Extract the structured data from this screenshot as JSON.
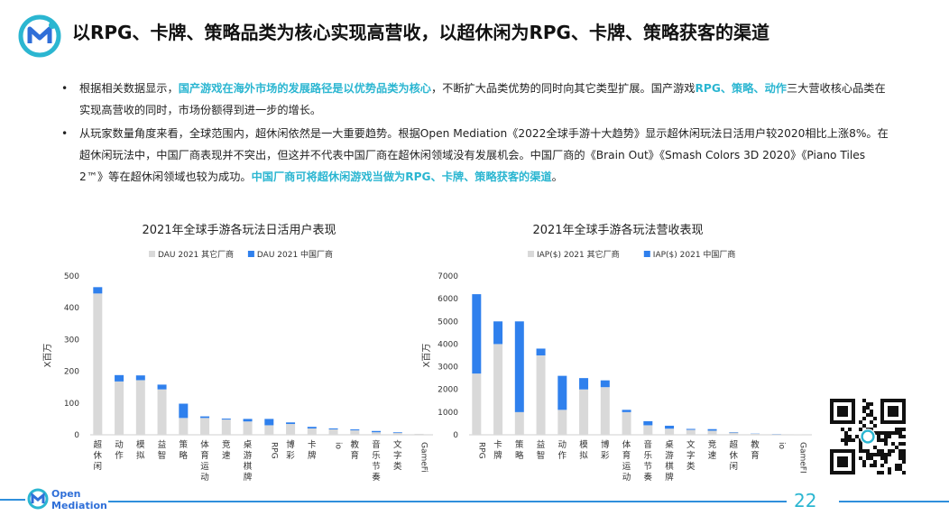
{
  "title": "以RPG、卡牌、策略品类为核心实现高营收，以超休闲为RPG、卡牌、策略获客的渠道",
  "bullets": [
    [
      {
        "t": "根据相关数据显示，",
        "hl": false
      },
      {
        "t": "国产游戏在海外市场的发展路径是以优势品类为核心",
        "hl": true
      },
      {
        "t": "，不断扩大品类优势的同时向其它类型扩展。国产游戏",
        "hl": false
      },
      {
        "t": "RPG、策略、动作",
        "hl": true
      },
      {
        "t": "三大营收核心品类在实现高营收的同时，市场份额得到进一步的增长。",
        "hl": false
      }
    ],
    [
      {
        "t": "从玩家数量角度来看，全球范围内，超休闲依然是一大重要趋势。根据Open Mediation《2022全球手游十大趋势》显示超休闲玩法日活用户较2020相比上涨8%。在超休闲玩法中，中国厂商表现并不突出，但这并不代表中国厂商在超休闲领域没有发展机会。中国厂商的《Brain Out》《Smash Colors 3D 2020》《Piano Tiles 2™》等在超休闲领域也较为成功。",
        "hl": false
      },
      {
        "t": "中国厂商可将超休闲游戏当做为RPG、卡牌、策略获客的渠道",
        "hl": true
      },
      {
        "t": "。",
        "hl": false
      }
    ]
  ],
  "colors": {
    "other": "#d9d9d9",
    "china": "#2f80ed",
    "accent": "#2bb6d1"
  },
  "chart_data": [
    {
      "type": "bar",
      "stacked": true,
      "title": "2021年全球手游各玩法日活用户表现",
      "ylabel": "X百万",
      "ylim": [
        0,
        500
      ],
      "yticks": [
        0,
        100,
        200,
        300,
        400,
        500
      ],
      "categories": [
        "超休闲",
        "动作",
        "模拟",
        "益智",
        "策略",
        "体育运动",
        "竞速",
        "桌游棋牌",
        "RPG",
        "博彩",
        "卡牌",
        "io",
        "教育",
        "音乐节奏",
        "文字类",
        "GameFi"
      ],
      "series": [
        {
          "name": "DAU 2021 其它厂商",
          "values": [
            445,
            168,
            172,
            143,
            53,
            53,
            48,
            42,
            30,
            34,
            20,
            17,
            14,
            8,
            6,
            3
          ]
        },
        {
          "name": "DAU 2021 中国厂商",
          "values": [
            20,
            20,
            15,
            15,
            45,
            5,
            3,
            8,
            20,
            5,
            5,
            3,
            3,
            4,
            2,
            0
          ]
        }
      ],
      "legend": "top"
    },
    {
      "type": "bar",
      "stacked": true,
      "title": "2021年全球手游各玩法营收表现",
      "ylabel": "X百万",
      "ylim": [
        0,
        7000
      ],
      "yticks": [
        0,
        1000,
        2000,
        3000,
        4000,
        5000,
        6000,
        7000
      ],
      "categories": [
        "RPG",
        "卡牌",
        "策略",
        "益智",
        "动作",
        "模拟",
        "博彩",
        "体育运动",
        "音乐节奏",
        "桌游棋牌",
        "文字类",
        "竞速",
        "超休闲",
        "教育",
        "io",
        "GameFI"
      ],
      "series": [
        {
          "name": "IAP($) 2021 其它厂商",
          "values": [
            2700,
            4000,
            1000,
            3500,
            1100,
            2000,
            2100,
            1000,
            420,
            270,
            220,
            180,
            100,
            40,
            20,
            10
          ]
        },
        {
          "name": "IAP($) 2021 中国厂商",
          "values": [
            3500,
            1000,
            4000,
            300,
            1500,
            500,
            300,
            100,
            180,
            130,
            40,
            70,
            20,
            10,
            10,
            0
          ]
        }
      ],
      "legend": "top"
    }
  ],
  "brand": {
    "logo_line1": "Open",
    "logo_line2": "Mediation"
  },
  "page_number": "22"
}
